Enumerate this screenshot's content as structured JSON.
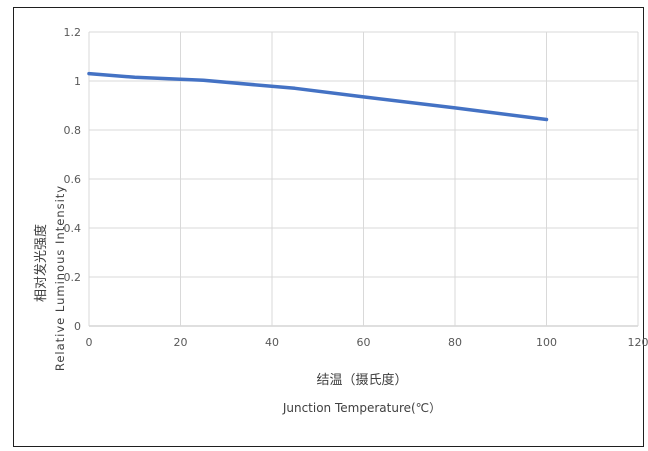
{
  "chart_data": {
    "type": "line",
    "title": "",
    "xlabel_cn": "结温（摄氏度）",
    "xlabel_en": "Junction Temperature(℃）",
    "ylabel_cn": "相对发光强度",
    "ylabel_en": "Relative Luminous Intensity",
    "xlim": [
      0,
      120
    ],
    "ylim": [
      0,
      1.2
    ],
    "xticks": [
      0,
      20,
      40,
      60,
      80,
      100,
      120
    ],
    "yticks": [
      0,
      0.2,
      0.4,
      0.6,
      0.8,
      1,
      1.2
    ],
    "grid": true,
    "legend": "none",
    "series": [
      {
        "color": "#4472c4",
        "x": [
          0,
          10,
          25,
          45,
          60,
          80,
          100
        ],
        "y": [
          1.03,
          1.015,
          1.003,
          0.97,
          0.935,
          0.89,
          0.843
        ]
      }
    ]
  }
}
